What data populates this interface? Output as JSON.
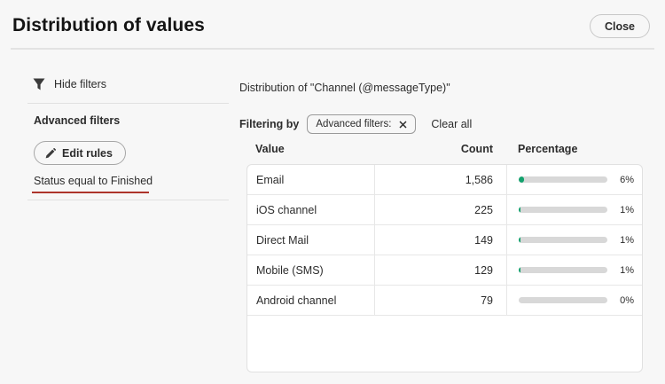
{
  "colors": {
    "accent_green": "#12a16d",
    "bar_track": "#d8d8d8",
    "underline_red": "#ad342b"
  },
  "header": {
    "title": "Distribution of values",
    "close_label": "Close"
  },
  "sidebar": {
    "hide_filters_label": "Hide filters",
    "filter_icon": "funnel-icon",
    "advanced_filters_title": "Advanced filters",
    "edit_rules_label": "Edit rules",
    "edit_rules_icon": "pencil-icon",
    "status_rule": "Status equal to Finished"
  },
  "main": {
    "distribution_title": "Distribution of \"Channel (@messageType)\"",
    "filtering_by_label": "Filtering by",
    "filter_chip_label": "Advanced filters:",
    "filter_chip_remove_icon": "close-icon",
    "clear_all_label": "Clear all"
  },
  "table": {
    "columns": [
      "Value",
      "Count",
      "Percentage"
    ],
    "rows": [
      {
        "value": "Email",
        "count": "1,586",
        "percent_label": "6%",
        "percent": 6
      },
      {
        "value": "iOS channel",
        "count": "225",
        "percent_label": "1%",
        "percent": 1
      },
      {
        "value": "Direct Mail",
        "count": "149",
        "percent_label": "1%",
        "percent": 1
      },
      {
        "value": "Mobile (SMS)",
        "count": "129",
        "percent_label": "1%",
        "percent": 1
      },
      {
        "value": "Android channel",
        "count": "79",
        "percent_label": "0%",
        "percent": 0
      }
    ]
  }
}
